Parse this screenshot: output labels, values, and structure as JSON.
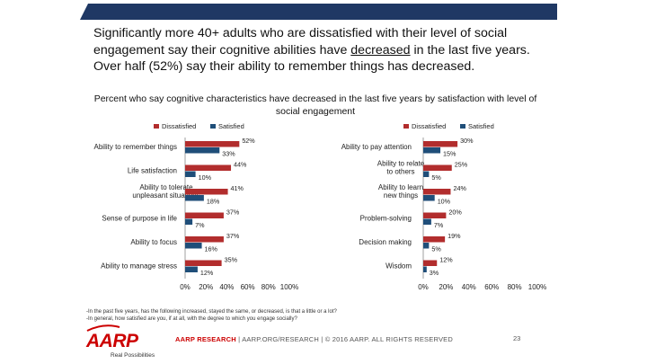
{
  "headline": {
    "line1": "Significantly more 40+ adults who are dissatisfied with their level of social",
    "line2_pre": "engagement say their cognitive abilities have ",
    "line2_underlined": "decreased",
    "line2_post": " in the last five years.",
    "line3": "Over half (52%) say their ability to remember things has decreased."
  },
  "chart_title": "Percent who say cognitive characteristics have decreased in the last five years by satisfaction with level of social engagement",
  "chart_data": {
    "type": "bar",
    "orientation": "horizontal",
    "colors": {
      "dissatisfied": "#b22d2d",
      "satisfied": "#1f4e79"
    },
    "legend": [
      "Dissatisfied",
      "Satisfied"
    ],
    "xlim": [
      0,
      100
    ],
    "ticks": [
      "0%",
      "20%",
      "40%",
      "60%",
      "80%",
      "100%"
    ],
    "panels": [
      {
        "categories": [
          "Ability to remember things",
          "Life satisfaction",
          "Ability to tolerate unpleasant situations",
          "Sense of purpose in life",
          "Ability to focus",
          "Ability to manage stress"
        ],
        "series": [
          {
            "name": "Dissatisfied",
            "values": [
              52,
              44,
              41,
              37,
              37,
              35
            ]
          },
          {
            "name": "Satisfied",
            "values": [
              33,
              10,
              18,
              7,
              16,
              12
            ]
          }
        ]
      },
      {
        "categories": [
          "Ability to pay attention",
          "Ability to relate to others",
          "Ability to learn new things",
          "Problem-solving",
          "Decision making",
          "Wisdom"
        ],
        "series": [
          {
            "name": "Dissatisfied",
            "values": [
              30,
              25,
              24,
              20,
              19,
              12
            ]
          },
          {
            "name": "Satisfied",
            "values": [
              15,
              5,
              10,
              7,
              5,
              3
            ]
          }
        ]
      }
    ]
  },
  "footnotes": [
    "-In the past five years, has the following increased, stayed the same, or decreased, is that a little or a lot?",
    "-In general, how satisfied are you, if at all, with the degree to which you engage socially?"
  ],
  "footer": {
    "logo": "AARP",
    "tagline": "Real Possibilities",
    "brand": "AARP RESEARCH",
    "rest": " | AARP.ORG/RESEARCH | © 2016 AARP. ALL RIGHTS RESERVED",
    "page_number": "23"
  }
}
